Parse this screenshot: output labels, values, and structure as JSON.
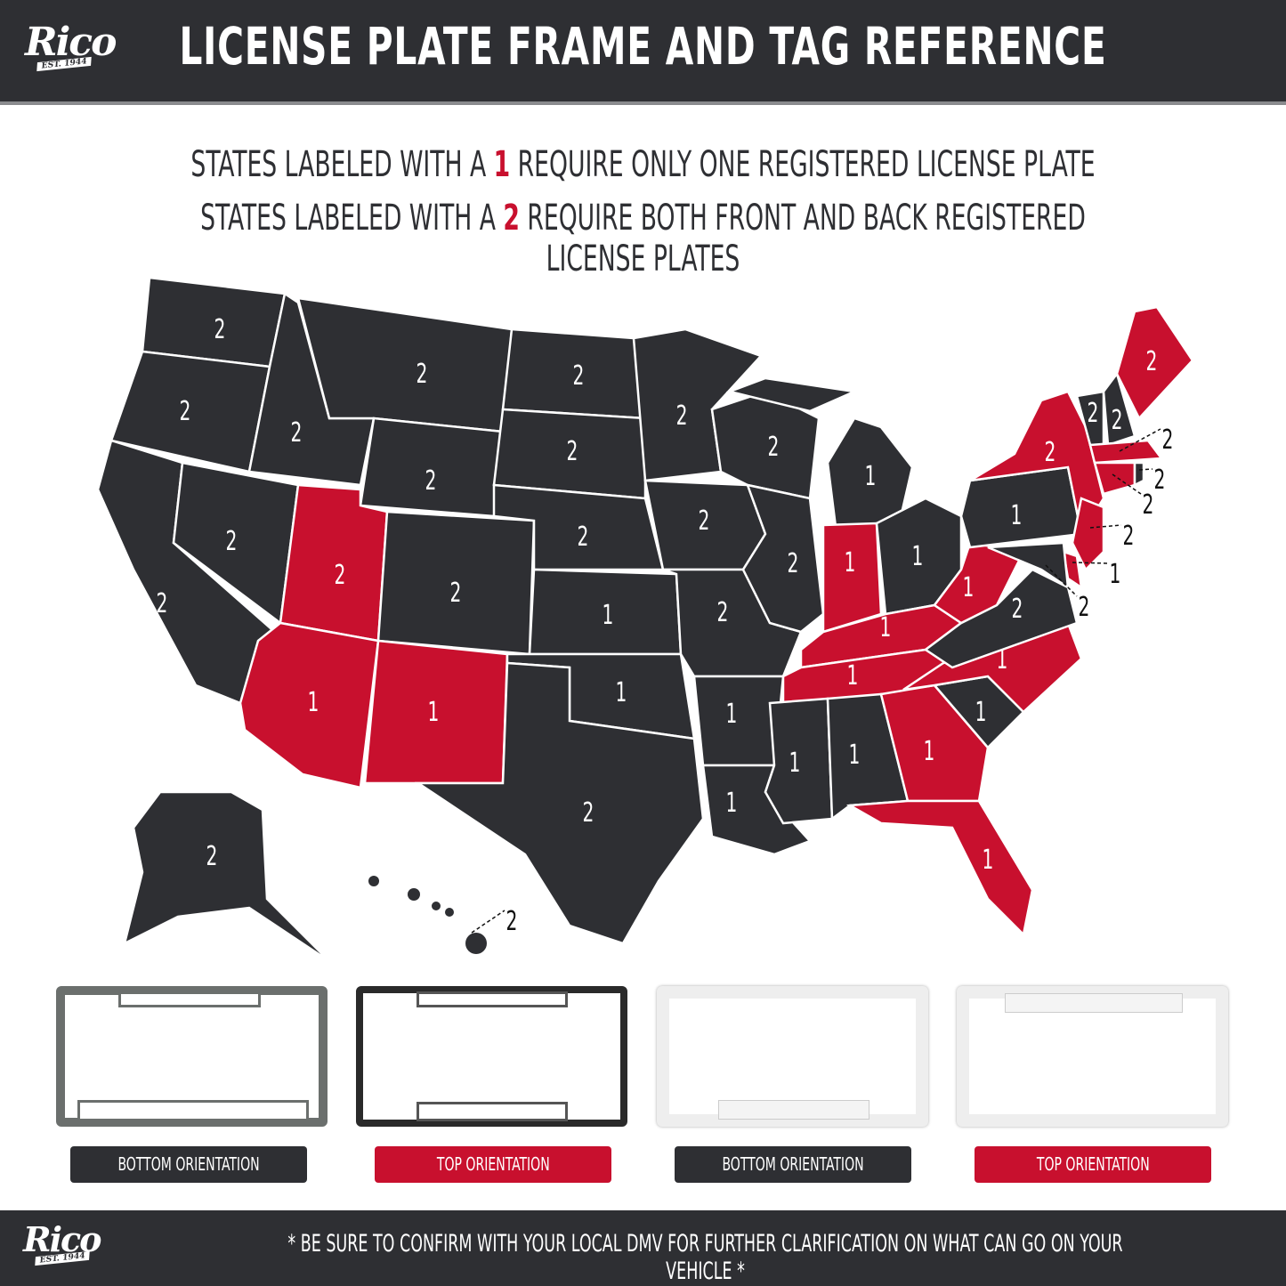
{
  "header": {
    "logo": "Rico",
    "logo_est": "EST. 1944",
    "title": "LICENSE PLATE FRAME AND TAG REFERENCE"
  },
  "subtitle": {
    "line1": {
      "pre": "STATES LABELED WITH A",
      "num": "1",
      "post": "REQUIRE ONLY ONE REGISTERED LICENSE PLATE"
    },
    "line2": {
      "pre": "STATES LABELED WITH A",
      "num": "2",
      "post": "REQUIRE BOTH FRONT AND BACK REGISTERED LICENSE PLATES"
    }
  },
  "colors": {
    "dark": "#2e2f33",
    "highlight": "#c8102e"
  },
  "map": {
    "states": [
      {
        "label": "2",
        "highlight": false
      },
      {
        "label": "2",
        "highlight": false
      },
      {
        "label": "2",
        "highlight": false
      },
      {
        "label": "2",
        "highlight": false
      },
      {
        "label": "2",
        "highlight": false
      },
      {
        "label": "2",
        "highlight": false
      },
      {
        "label": "2",
        "highlight": false
      },
      {
        "label": "2",
        "highlight": true
      },
      {
        "label": "2",
        "highlight": false
      },
      {
        "label": "1",
        "highlight": true
      },
      {
        "label": "1",
        "highlight": true
      },
      {
        "label": "2",
        "highlight": false
      },
      {
        "label": "2",
        "highlight": false
      },
      {
        "label": "2",
        "highlight": false
      },
      {
        "label": "1",
        "highlight": false
      },
      {
        "label": "1",
        "highlight": false
      },
      {
        "label": "2",
        "highlight": false
      },
      {
        "label": "2",
        "highlight": false
      },
      {
        "label": "2",
        "highlight": false
      },
      {
        "label": "2",
        "highlight": false
      },
      {
        "label": "1",
        "highlight": false
      },
      {
        "label": "1",
        "highlight": false
      },
      {
        "label": "2",
        "highlight": false
      },
      {
        "label": "2",
        "highlight": false
      },
      {
        "label": "1",
        "highlight": false
      },
      {
        "label": "1",
        "highlight": true
      },
      {
        "label": "1",
        "highlight": false
      },
      {
        "label": "1",
        "highlight": true
      },
      {
        "label": "1",
        "highlight": true
      },
      {
        "label": "1",
        "highlight": false
      },
      {
        "label": "1",
        "highlight": false
      },
      {
        "label": "1",
        "highlight": true
      },
      {
        "label": "1",
        "highlight": true
      },
      {
        "label": "1",
        "highlight": false
      },
      {
        "label": "1",
        "highlight": true
      },
      {
        "label": "2",
        "highlight": false
      },
      {
        "label": "1",
        "highlight": true
      },
      {
        "label": "1",
        "highlight": false
      },
      {
        "label": "2",
        "highlight": true
      },
      {
        "label": "2",
        "highlight": true
      },
      {
        "label": "1",
        "highlight": true
      },
      {
        "label": "2",
        "highlight": false
      },
      {
        "label": "2",
        "highlight": false
      },
      {
        "label": "2",
        "highlight": false
      },
      {
        "label": "2",
        "highlight": true
      },
      {
        "label": "2",
        "highlight": true
      },
      {
        "label": "2",
        "highlight": true
      },
      {
        "label": "2",
        "highlight": false
      },
      {
        "label": "2",
        "highlight": false
      },
      {
        "label": "2",
        "highlight": false
      }
    ]
  },
  "frames": [
    {
      "label": "BOTTOM ORIENTATION",
      "style": "dark"
    },
    {
      "label": "TOP ORIENTATION",
      "style": "highlight"
    },
    {
      "label": "BOTTOM ORIENTATION",
      "style": "dark"
    },
    {
      "label": "TOP ORIENTATION",
      "style": "highlight"
    }
  ],
  "footer": {
    "logo": "Rico",
    "logo_est": "EST. 1944",
    "note": "* BE SURE TO CONFIRM WITH YOUR LOCAL DMV FOR FURTHER CLARIFICATION ON WHAT CAN GO ON YOUR VEHICLE *"
  }
}
